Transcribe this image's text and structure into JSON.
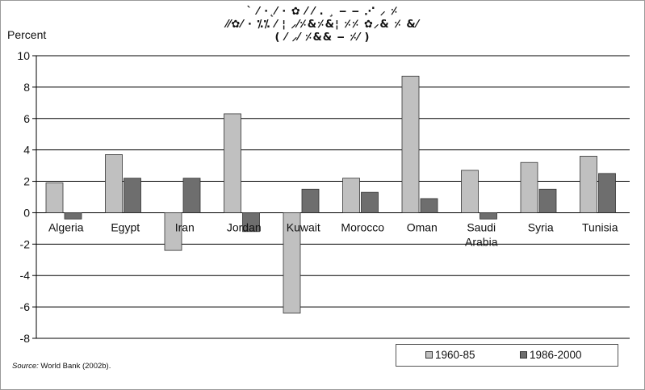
{
  "chart_data": {
    "type": "bar",
    "title": "",
    "ylabel": "Percent",
    "xlabel": "",
    "ylim": [
      -8,
      10
    ],
    "yticks": [
      -8,
      -6,
      -4,
      -2,
      0,
      2,
      4,
      6,
      8,
      10
    ],
    "grid": true,
    "legend_position": "bottom-right",
    "categories": [
      "Algeria",
      "Egypt",
      "Iran",
      "Jordan",
      "Kuwait",
      "Morocco",
      "Oman",
      "Saudi Arabia",
      "Syria",
      "Tunisia"
    ],
    "series": [
      {
        "name": "1960-85",
        "color": "#c0c0c0",
        "values": [
          1.9,
          3.7,
          -2.4,
          6.3,
          -6.4,
          2.2,
          8.7,
          2.7,
          3.2,
          3.6
        ]
      },
      {
        "name": "1986-2000",
        "color": "#6e6e6e",
        "values": [
          -0.4,
          2.2,
          2.2,
          -1.2,
          1.5,
          1.3,
          0.9,
          -0.4,
          1.5,
          2.5
        ]
      }
    ]
  },
  "source": {
    "label": "Source:",
    "text": "World Bank (2002b)."
  },
  "colors": {
    "gridline": "#000000",
    "bar_outline": "#333333"
  }
}
